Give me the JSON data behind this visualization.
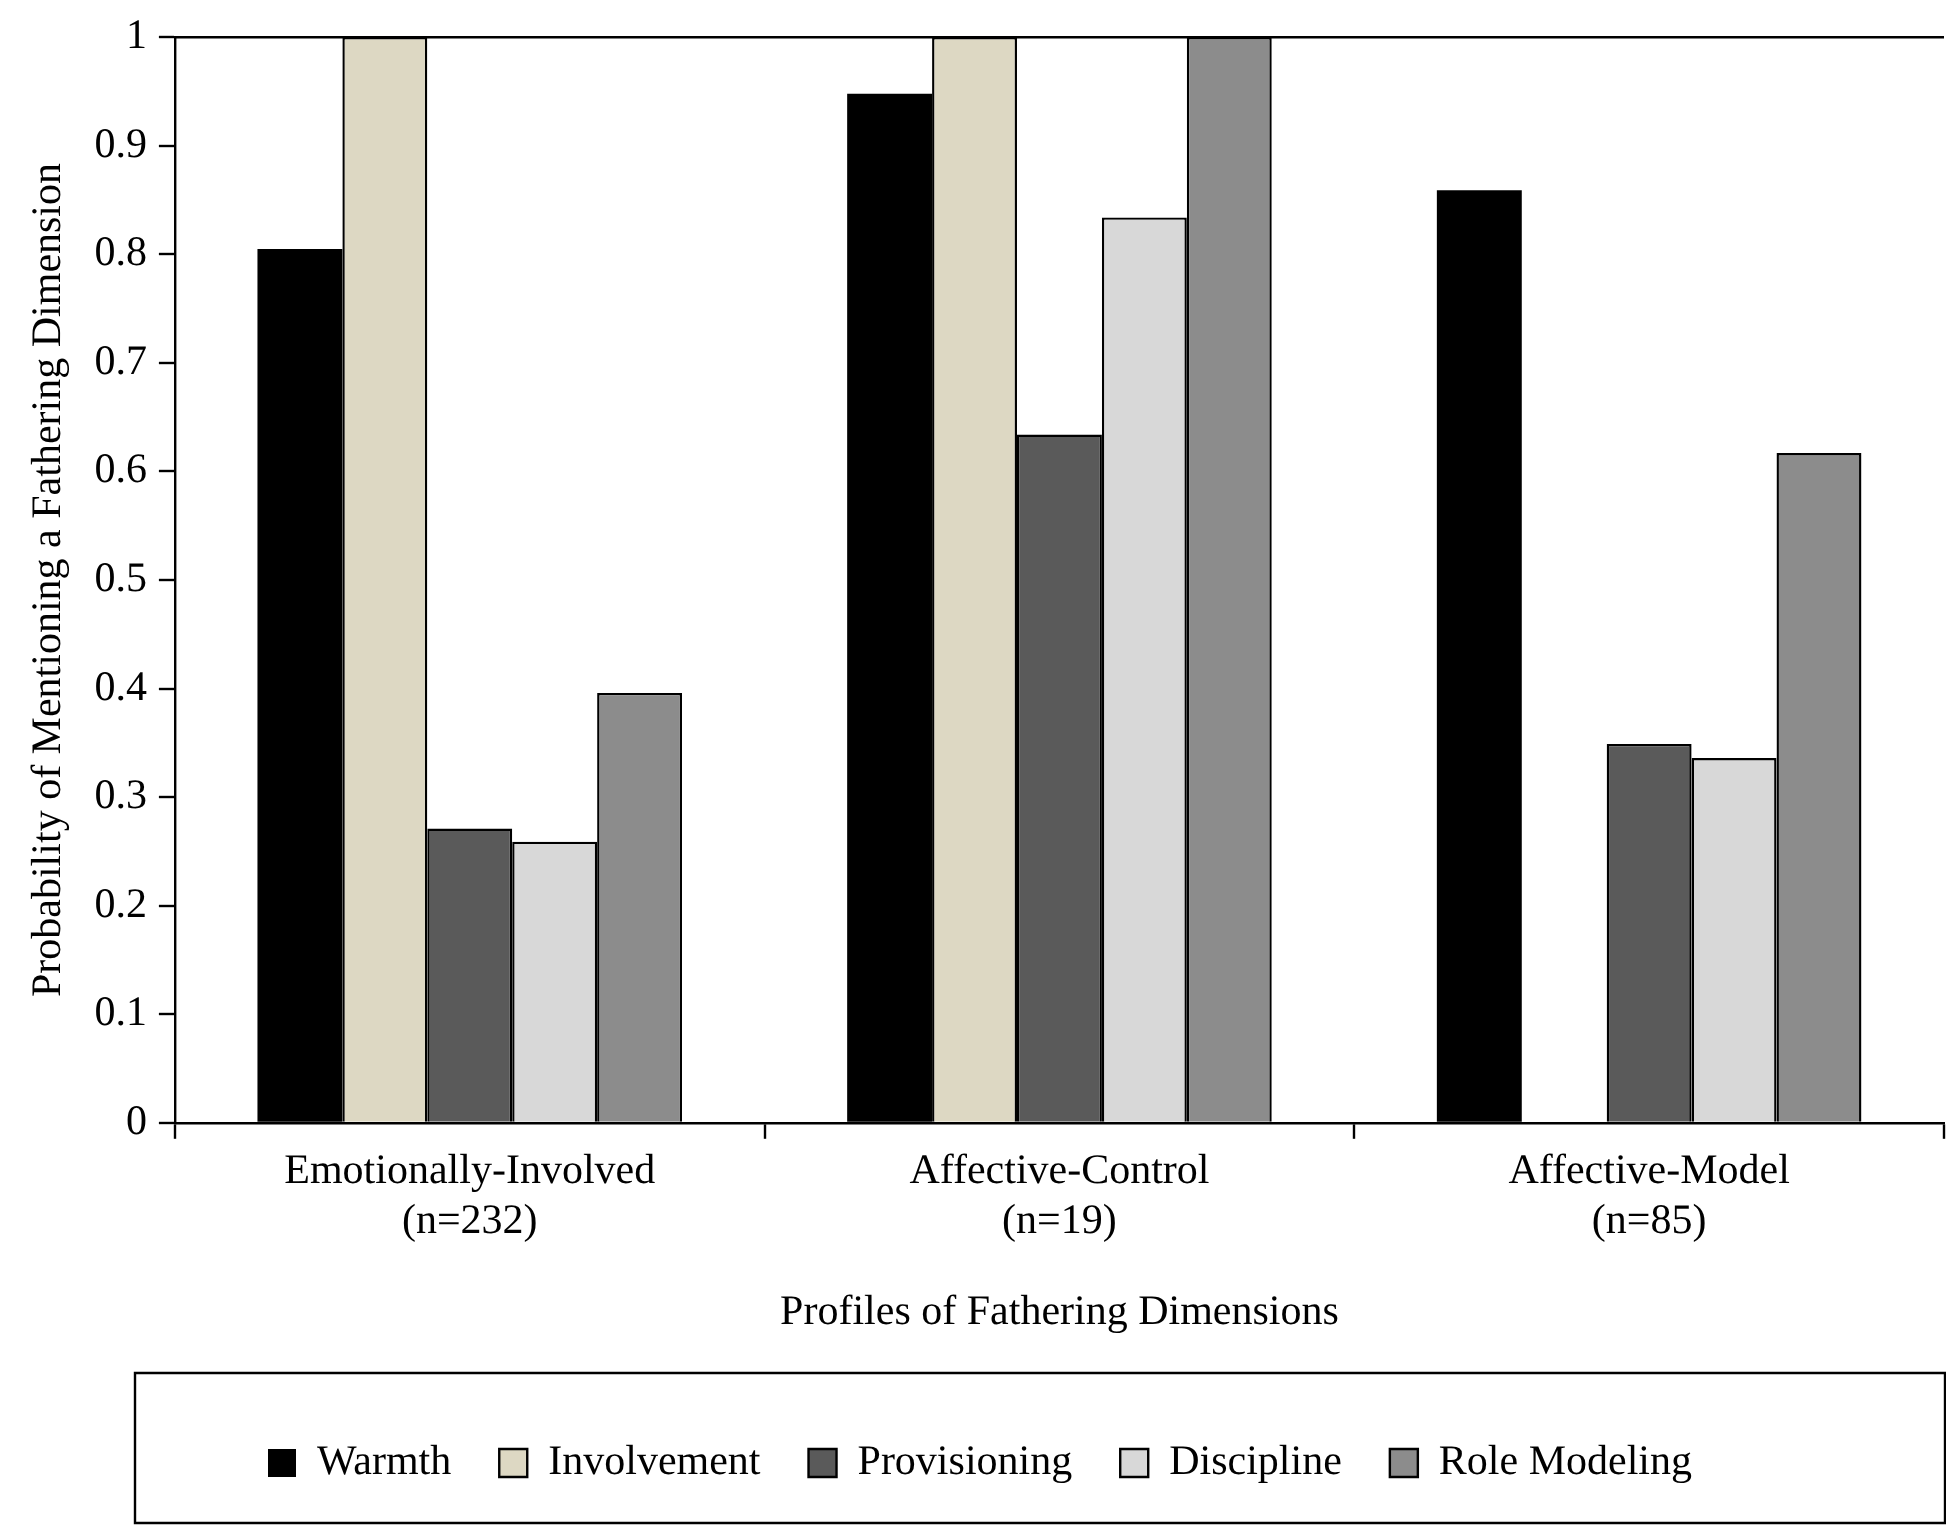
{
  "chart_data": {
    "type": "bar",
    "xlabel": "Profiles of Fathering Dimensions",
    "ylabel": "Probability of Mentioning a Fathering Dimension",
    "categories": [
      "Emotionally-Involved\n(n=232)",
      "Affective-Control\n(n=19)",
      "Affective-Model\n(n=85)"
    ],
    "series": [
      {
        "name": "Warmth",
        "color": "#000000",
        "values": [
          0.805,
          0.948,
          0.859
        ]
      },
      {
        "name": "Involvement",
        "color": "#ddd8c3",
        "values": [
          1,
          1,
          0
        ]
      },
      {
        "name": "Provisioning",
        "color": "#5a5a5a",
        "values": [
          0.271,
          0.634,
          0.349
        ]
      },
      {
        "name": "Discipline",
        "color": "#d8d8d8",
        "values": [
          0.259,
          0.834,
          0.336
        ]
      },
      {
        "name": "Role Modeling",
        "color": "#8c8c8c",
        "values": [
          0.396,
          1,
          0.617
        ]
      }
    ],
    "ylim": [
      0,
      1
    ],
    "yticks": [
      0,
      0.1,
      0.2,
      0.3,
      0.4,
      0.5,
      0.6,
      0.7,
      0.8,
      0.9,
      1
    ],
    "grid": false,
    "legend": "bottom"
  }
}
